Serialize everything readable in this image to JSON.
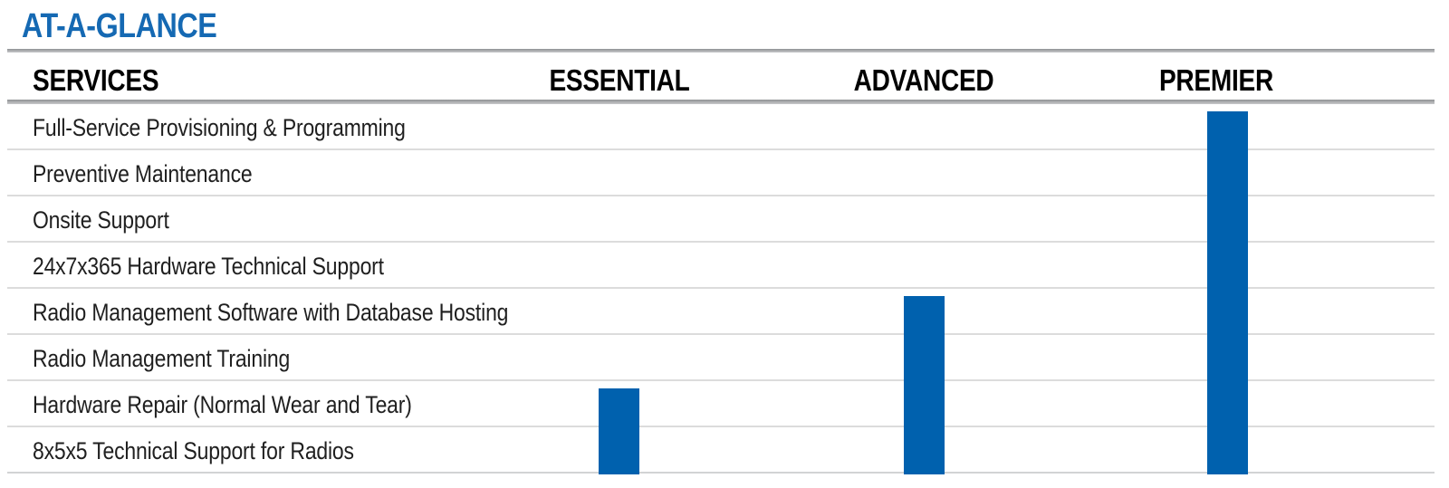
{
  "title": "AT-A-GLANCE",
  "table": {
    "header": {
      "services": "SERVICES"
    },
    "services": [
      "Full-Service Provisioning & Programming",
      "Preventive Maintenance",
      "Onsite Support",
      "24x7x365 Hardware Technical Support",
      "Radio Management Software with Database Hosting",
      "Radio Management Training",
      "Hardware Repair (Normal Wear and Tear)",
      "8x5x5 Technical Support for Radios"
    ],
    "tiers": [
      {
        "name": "ESSENTIAL",
        "covered": [
          false,
          false,
          false,
          false,
          false,
          false,
          true,
          true
        ]
      },
      {
        "name": "ADVANCED",
        "covered": [
          false,
          false,
          false,
          false,
          true,
          true,
          true,
          true
        ]
      },
      {
        "name": "PREMIER",
        "covered": [
          true,
          true,
          true,
          true,
          true,
          true,
          true,
          true
        ]
      }
    ]
  },
  "colors": {
    "title_blue": "#1569B3",
    "bar_blue": "#0061AE",
    "header_text": "#000000",
    "row_text": "#1F1F1F"
  }
}
